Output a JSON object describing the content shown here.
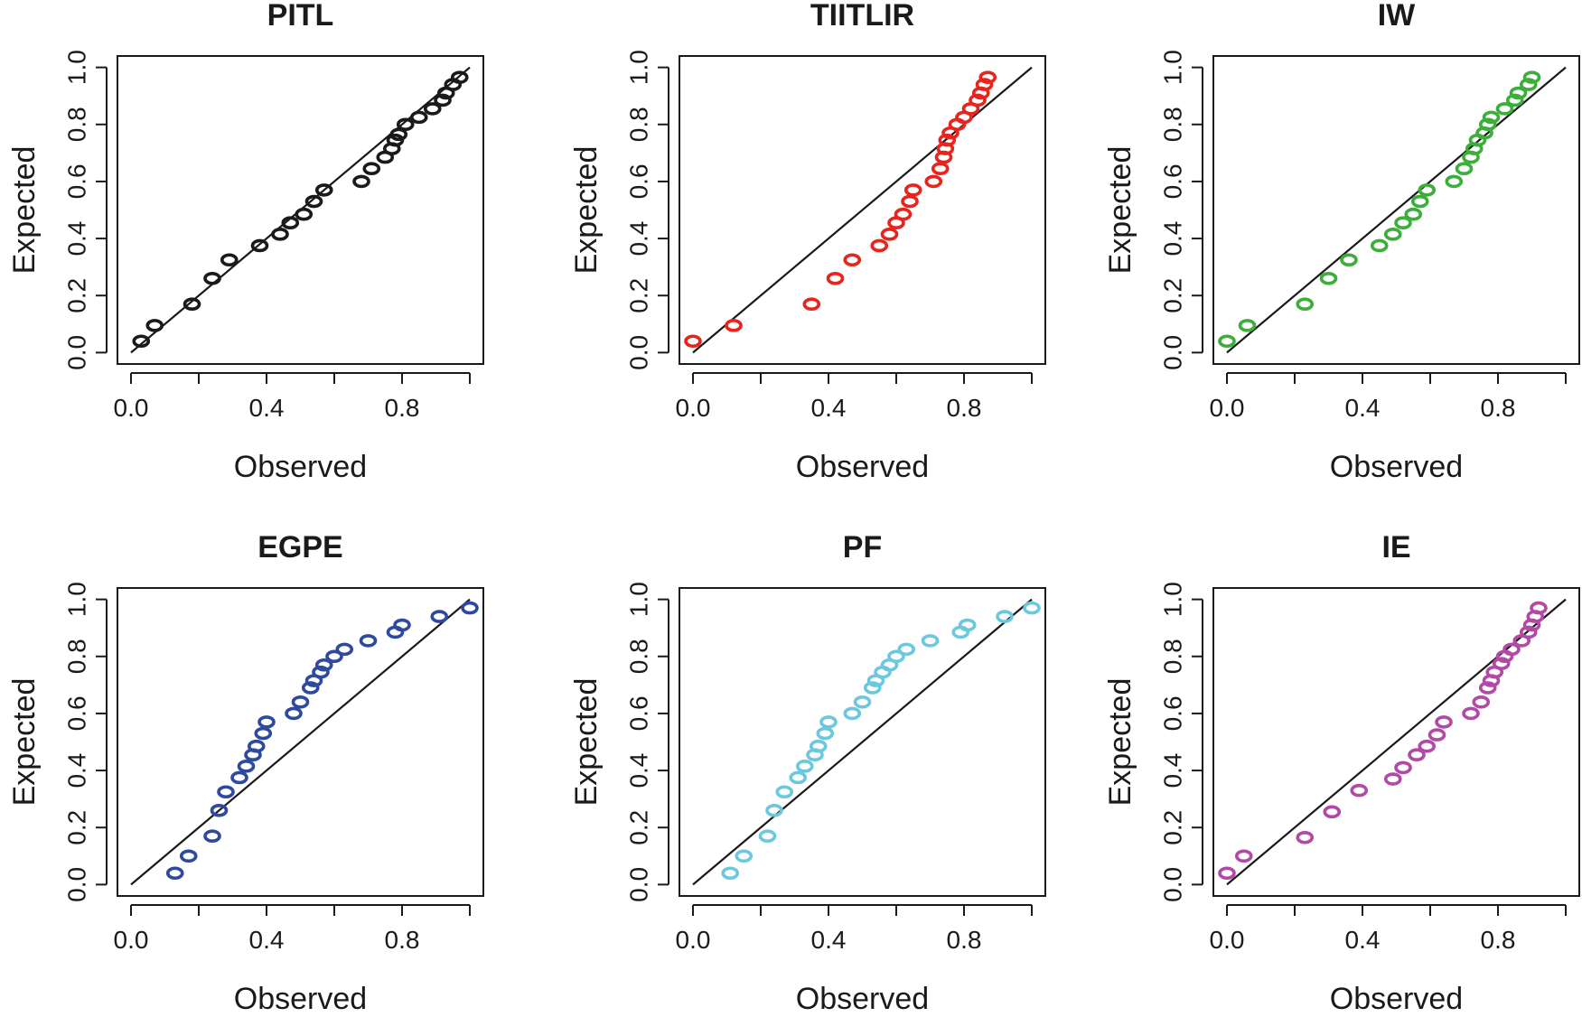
{
  "figure": {
    "layout": "2x3"
  },
  "chart_data": [
    {
      "type": "scatter",
      "title": "PITL",
      "xlabel": "Observed",
      "ylabel": "Expected",
      "color": "#1a1a1a",
      "xlim": [
        0,
        1
      ],
      "ylim": [
        0,
        1
      ],
      "xticks": [
        0.0,
        0.4,
        0.8
      ],
      "xtick_labels": [
        "0.0",
        "0.4",
        "0.8"
      ],
      "yticks": [
        0.0,
        0.2,
        0.4,
        0.6,
        0.8,
        1.0
      ],
      "ytick_labels": [
        "0.0",
        "0.2",
        "0.4",
        "0.6",
        "0.8",
        "1.0"
      ],
      "reference_line": [
        [
          0,
          0
        ],
        [
          1,
          1
        ]
      ],
      "points": [
        {
          "x": 0.03,
          "y": 0.04
        },
        {
          "x": 0.07,
          "y": 0.095
        },
        {
          "x": 0.18,
          "y": 0.17
        },
        {
          "x": 0.24,
          "y": 0.26
        },
        {
          "x": 0.29,
          "y": 0.325
        },
        {
          "x": 0.38,
          "y": 0.375
        },
        {
          "x": 0.44,
          "y": 0.415
        },
        {
          "x": 0.47,
          "y": 0.455
        },
        {
          "x": 0.51,
          "y": 0.485
        },
        {
          "x": 0.54,
          "y": 0.53
        },
        {
          "x": 0.57,
          "y": 0.57
        },
        {
          "x": 0.68,
          "y": 0.6
        },
        {
          "x": 0.71,
          "y": 0.645
        },
        {
          "x": 0.75,
          "y": 0.685
        },
        {
          "x": 0.77,
          "y": 0.715
        },
        {
          "x": 0.78,
          "y": 0.745
        },
        {
          "x": 0.79,
          "y": 0.765
        },
        {
          "x": 0.81,
          "y": 0.8
        },
        {
          "x": 0.85,
          "y": 0.825
        },
        {
          "x": 0.89,
          "y": 0.855
        },
        {
          "x": 0.92,
          "y": 0.885
        },
        {
          "x": 0.93,
          "y": 0.91
        },
        {
          "x": 0.95,
          "y": 0.94
        },
        {
          "x": 0.97,
          "y": 0.965
        }
      ]
    },
    {
      "type": "scatter",
      "title": "TIITLIR",
      "xlabel": "Observed",
      "ylabel": "Expected",
      "color": "#e8241c",
      "xlim": [
        0,
        1
      ],
      "ylim": [
        0,
        1
      ],
      "xticks": [
        0.0,
        0.4,
        0.8
      ],
      "xtick_labels": [
        "0.0",
        "0.4",
        "0.8"
      ],
      "yticks": [
        0.0,
        0.2,
        0.4,
        0.6,
        0.8,
        1.0
      ],
      "ytick_labels": [
        "0.0",
        "0.2",
        "0.4",
        "0.6",
        "0.8",
        "1.0"
      ],
      "reference_line": [
        [
          0,
          0
        ],
        [
          1,
          1
        ]
      ],
      "points": [
        {
          "x": 0.0,
          "y": 0.04
        },
        {
          "x": 0.12,
          "y": 0.095
        },
        {
          "x": 0.35,
          "y": 0.17
        },
        {
          "x": 0.42,
          "y": 0.26
        },
        {
          "x": 0.47,
          "y": 0.325
        },
        {
          "x": 0.55,
          "y": 0.375
        },
        {
          "x": 0.58,
          "y": 0.415
        },
        {
          "x": 0.6,
          "y": 0.455
        },
        {
          "x": 0.62,
          "y": 0.485
        },
        {
          "x": 0.64,
          "y": 0.53
        },
        {
          "x": 0.65,
          "y": 0.57
        },
        {
          "x": 0.71,
          "y": 0.6
        },
        {
          "x": 0.73,
          "y": 0.645
        },
        {
          "x": 0.74,
          "y": 0.685
        },
        {
          "x": 0.745,
          "y": 0.715
        },
        {
          "x": 0.75,
          "y": 0.745
        },
        {
          "x": 0.76,
          "y": 0.77
        },
        {
          "x": 0.78,
          "y": 0.8
        },
        {
          "x": 0.8,
          "y": 0.825
        },
        {
          "x": 0.82,
          "y": 0.855
        },
        {
          "x": 0.84,
          "y": 0.885
        },
        {
          "x": 0.85,
          "y": 0.91
        },
        {
          "x": 0.86,
          "y": 0.94
        },
        {
          "x": 0.87,
          "y": 0.965
        }
      ]
    },
    {
      "type": "scatter",
      "title": "IW",
      "xlabel": "Observed",
      "ylabel": "Expected",
      "color": "#3cae3a",
      "xlim": [
        0,
        1
      ],
      "ylim": [
        0,
        1
      ],
      "xticks": [
        0.0,
        0.4,
        0.8
      ],
      "xtick_labels": [
        "0.0",
        "0.4",
        "0.8"
      ],
      "yticks": [
        0.0,
        0.2,
        0.4,
        0.6,
        0.8,
        1.0
      ],
      "ytick_labels": [
        "0.0",
        "0.2",
        "0.4",
        "0.6",
        "0.8",
        "1.0"
      ],
      "reference_line": [
        [
          0,
          0
        ],
        [
          1,
          1
        ]
      ],
      "points": [
        {
          "x": 0.0,
          "y": 0.04
        },
        {
          "x": 0.06,
          "y": 0.095
        },
        {
          "x": 0.23,
          "y": 0.17
        },
        {
          "x": 0.3,
          "y": 0.26
        },
        {
          "x": 0.36,
          "y": 0.325
        },
        {
          "x": 0.45,
          "y": 0.375
        },
        {
          "x": 0.49,
          "y": 0.415
        },
        {
          "x": 0.52,
          "y": 0.455
        },
        {
          "x": 0.55,
          "y": 0.485
        },
        {
          "x": 0.57,
          "y": 0.53
        },
        {
          "x": 0.59,
          "y": 0.57
        },
        {
          "x": 0.67,
          "y": 0.6
        },
        {
          "x": 0.7,
          "y": 0.645
        },
        {
          "x": 0.72,
          "y": 0.685
        },
        {
          "x": 0.73,
          "y": 0.715
        },
        {
          "x": 0.74,
          "y": 0.745
        },
        {
          "x": 0.76,
          "y": 0.77
        },
        {
          "x": 0.77,
          "y": 0.8
        },
        {
          "x": 0.78,
          "y": 0.825
        },
        {
          "x": 0.82,
          "y": 0.855
        },
        {
          "x": 0.85,
          "y": 0.885
        },
        {
          "x": 0.86,
          "y": 0.91
        },
        {
          "x": 0.89,
          "y": 0.94
        },
        {
          "x": 0.9,
          "y": 0.965
        }
      ]
    },
    {
      "type": "scatter",
      "title": "EGPE",
      "xlabel": "Observed",
      "ylabel": "Expected",
      "color": "#2e4a9e",
      "xlim": [
        0,
        1
      ],
      "ylim": [
        0,
        1
      ],
      "xticks": [
        0.0,
        0.4,
        0.8
      ],
      "xtick_labels": [
        "0.0",
        "0.4",
        "0.8"
      ],
      "yticks": [
        0.0,
        0.2,
        0.4,
        0.6,
        0.8,
        1.0
      ],
      "ytick_labels": [
        "0.0",
        "0.2",
        "0.4",
        "0.6",
        "0.8",
        "1.0"
      ],
      "reference_line": [
        [
          0,
          0
        ],
        [
          1,
          1
        ]
      ],
      "points": [
        {
          "x": 0.13,
          "y": 0.04
        },
        {
          "x": 0.17,
          "y": 0.1
        },
        {
          "x": 0.24,
          "y": 0.17
        },
        {
          "x": 0.26,
          "y": 0.26
        },
        {
          "x": 0.28,
          "y": 0.325
        },
        {
          "x": 0.32,
          "y": 0.375
        },
        {
          "x": 0.34,
          "y": 0.415
        },
        {
          "x": 0.36,
          "y": 0.455
        },
        {
          "x": 0.37,
          "y": 0.485
        },
        {
          "x": 0.39,
          "y": 0.53
        },
        {
          "x": 0.4,
          "y": 0.57
        },
        {
          "x": 0.48,
          "y": 0.6
        },
        {
          "x": 0.5,
          "y": 0.64
        },
        {
          "x": 0.53,
          "y": 0.69
        },
        {
          "x": 0.54,
          "y": 0.715
        },
        {
          "x": 0.56,
          "y": 0.745
        },
        {
          "x": 0.57,
          "y": 0.77
        },
        {
          "x": 0.6,
          "y": 0.8
        },
        {
          "x": 0.63,
          "y": 0.825
        },
        {
          "x": 0.7,
          "y": 0.855
        },
        {
          "x": 0.78,
          "y": 0.885
        },
        {
          "x": 0.8,
          "y": 0.91
        },
        {
          "x": 0.91,
          "y": 0.94
        },
        {
          "x": 1.0,
          "y": 0.97
        }
      ]
    },
    {
      "type": "scatter",
      "title": "PF",
      "xlabel": "Observed",
      "ylabel": "Expected",
      "color": "#6cc8dc",
      "xlim": [
        0,
        1
      ],
      "ylim": [
        0,
        1
      ],
      "xticks": [
        0.0,
        0.4,
        0.8
      ],
      "xtick_labels": [
        "0.0",
        "0.4",
        "0.8"
      ],
      "yticks": [
        0.0,
        0.2,
        0.4,
        0.6,
        0.8,
        1.0
      ],
      "ytick_labels": [
        "0.0",
        "0.2",
        "0.4",
        "0.6",
        "0.8",
        "1.0"
      ],
      "reference_line": [
        [
          0,
          0
        ],
        [
          1,
          1
        ]
      ],
      "points": [
        {
          "x": 0.11,
          "y": 0.04
        },
        {
          "x": 0.15,
          "y": 0.1
        },
        {
          "x": 0.22,
          "y": 0.17
        },
        {
          "x": 0.24,
          "y": 0.26
        },
        {
          "x": 0.27,
          "y": 0.325
        },
        {
          "x": 0.31,
          "y": 0.375
        },
        {
          "x": 0.33,
          "y": 0.415
        },
        {
          "x": 0.36,
          "y": 0.455
        },
        {
          "x": 0.37,
          "y": 0.485
        },
        {
          "x": 0.39,
          "y": 0.53
        },
        {
          "x": 0.4,
          "y": 0.57
        },
        {
          "x": 0.47,
          "y": 0.6
        },
        {
          "x": 0.5,
          "y": 0.64
        },
        {
          "x": 0.53,
          "y": 0.69
        },
        {
          "x": 0.54,
          "y": 0.715
        },
        {
          "x": 0.56,
          "y": 0.745
        },
        {
          "x": 0.58,
          "y": 0.77
        },
        {
          "x": 0.6,
          "y": 0.8
        },
        {
          "x": 0.63,
          "y": 0.825
        },
        {
          "x": 0.7,
          "y": 0.855
        },
        {
          "x": 0.79,
          "y": 0.885
        },
        {
          "x": 0.81,
          "y": 0.91
        },
        {
          "x": 0.92,
          "y": 0.94
        },
        {
          "x": 1.0,
          "y": 0.97
        }
      ]
    },
    {
      "type": "scatter",
      "title": "IE",
      "xlabel": "Observed",
      "ylabel": "Expected",
      "color": "#b24aa5",
      "xlim": [
        0,
        1
      ],
      "ylim": [
        0,
        1
      ],
      "xticks": [
        0.0,
        0.4,
        0.8
      ],
      "xtick_labels": [
        "0.0",
        "0.4",
        "0.8"
      ],
      "yticks": [
        0.0,
        0.2,
        0.4,
        0.6,
        0.8,
        1.0
      ],
      "ytick_labels": [
        "0.0",
        "0.2",
        "0.4",
        "0.6",
        "0.8",
        "1.0"
      ],
      "reference_line": [
        [
          0,
          0
        ],
        [
          1,
          1
        ]
      ],
      "points": [
        {
          "x": 0.0,
          "y": 0.04
        },
        {
          "x": 0.05,
          "y": 0.1
        },
        {
          "x": 0.23,
          "y": 0.165
        },
        {
          "x": 0.31,
          "y": 0.255
        },
        {
          "x": 0.39,
          "y": 0.33
        },
        {
          "x": 0.49,
          "y": 0.37
        },
        {
          "x": 0.52,
          "y": 0.41
        },
        {
          "x": 0.56,
          "y": 0.455
        },
        {
          "x": 0.59,
          "y": 0.485
        },
        {
          "x": 0.62,
          "y": 0.525
        },
        {
          "x": 0.64,
          "y": 0.57
        },
        {
          "x": 0.72,
          "y": 0.6
        },
        {
          "x": 0.75,
          "y": 0.64
        },
        {
          "x": 0.77,
          "y": 0.69
        },
        {
          "x": 0.78,
          "y": 0.715
        },
        {
          "x": 0.79,
          "y": 0.745
        },
        {
          "x": 0.81,
          "y": 0.775
        },
        {
          "x": 0.82,
          "y": 0.8
        },
        {
          "x": 0.84,
          "y": 0.825
        },
        {
          "x": 0.87,
          "y": 0.855
        },
        {
          "x": 0.89,
          "y": 0.885
        },
        {
          "x": 0.9,
          "y": 0.91
        },
        {
          "x": 0.91,
          "y": 0.94
        },
        {
          "x": 0.92,
          "y": 0.97
        }
      ]
    }
  ]
}
